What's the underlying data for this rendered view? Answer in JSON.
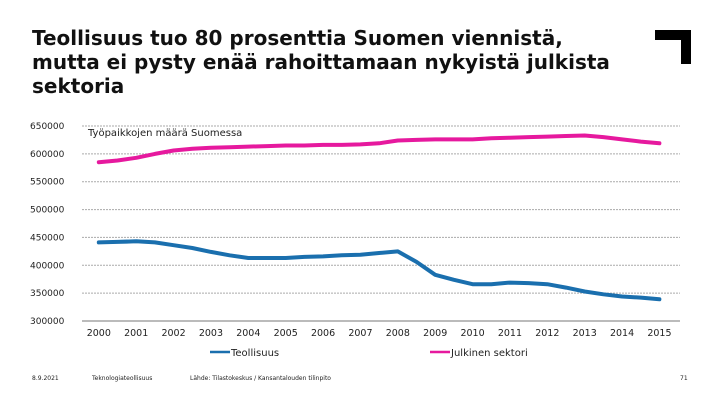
{
  "title": "Teollisuus tuo 80 prosenttia Suomen viennistä, mutta ei pysty enää rahoittamaan nykyistä julkista sektoria",
  "footer": {
    "date": "8.9.2021",
    "company": "Teknologiateollisuus",
    "source": "Lähde: Tilastokeskus / Kansantalouden tilinpito",
    "page": "71"
  },
  "chart_data": {
    "type": "line",
    "title": "Työpaikkojen määrä Suomessa",
    "xlabel": "",
    "ylabel": "",
    "ylim": [
      300000,
      650000
    ],
    "yticks": [
      300000,
      350000,
      400000,
      450000,
      500000,
      550000,
      600000,
      650000
    ],
    "grid": true,
    "legend": "bottom",
    "x": [
      2000,
      2000.5,
      2001,
      2001.5,
      2002,
      2002.5,
      2003,
      2003.5,
      2004,
      2004.5,
      2005,
      2005.5,
      2006,
      2006.5,
      2007,
      2007.5,
      2008,
      2008.5,
      2009,
      2009.5,
      2010,
      2010.5,
      2011,
      2011.5,
      2012,
      2012.5,
      2013,
      2013.5,
      2014,
      2014.5,
      2015
    ],
    "xticks": [
      "2000",
      "2001",
      "2002",
      "2003",
      "2004",
      "2005",
      "2006",
      "2007",
      "2008",
      "2009",
      "2010",
      "2011",
      "2012",
      "2013",
      "2014",
      "2015"
    ],
    "series": [
      {
        "name": "Teollisuus",
        "color": "#1a6fae",
        "values": [
          441000,
          442000,
          443000,
          441000,
          436000,
          431000,
          424000,
          418000,
          413000,
          413000,
          413000,
          415000,
          416000,
          418000,
          419000,
          422000,
          425000,
          406000,
          383000,
          374000,
          366000,
          366000,
          369000,
          368000,
          366000,
          360000,
          353000,
          348000,
          344000,
          342000,
          339000
        ]
      },
      {
        "name": "Julkinen sektori",
        "color": "#e6199e",
        "values": [
          585000,
          588000,
          593000,
          600000,
          606000,
          609000,
          611000,
          612000,
          613000,
          614000,
          615000,
          615000,
          616000,
          616000,
          617000,
          619000,
          624000,
          625000,
          626000,
          626000,
          626000,
          628000,
          629000,
          630000,
          631000,
          632000,
          633000,
          630000,
          626000,
          622000,
          619000
        ]
      }
    ]
  }
}
